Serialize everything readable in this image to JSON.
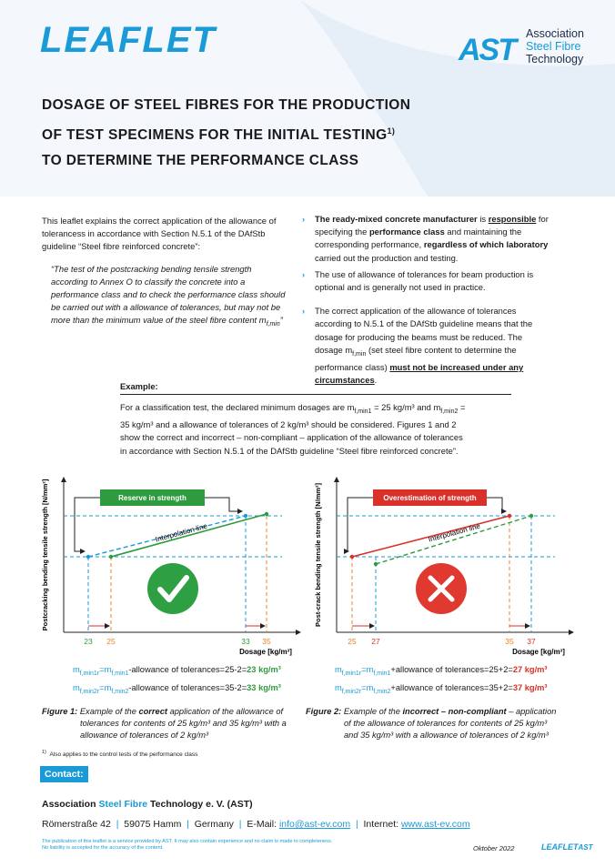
{
  "header": {
    "title": "LEAFLET",
    "logo": {
      "mark": "AST",
      "lines": [
        "Association",
        "Steel Fibre",
        "Technology"
      ]
    },
    "heading": {
      "lines": [
        "DOSAGE OF STEEL FIBRES FOR THE PRODUCTION",
        "OF TEST SPECIMENS FOR THE INITIAL TESTING",
        "TO DETERMINE THE PERFORMANCE CLASS"
      ],
      "footnote_mark": "1)"
    }
  },
  "left_column": {
    "intro": "This leaflet explains the correct application of the allowance of tolerancess in accordance with Section N.5.1 of the DAfStb guideline “Steel fibre reinforced concrete”:",
    "quote": [
      "“The test of the postcracking bending tensile strength according to Annex O to classify the concrete into a performance class and to check the performance class should be carried out with a allowance of tolerances, but may not be more than the minimum value of the steel fibre content m",
      "f,min",
      "”"
    ]
  },
  "right_column": {
    "bullets": [
      [
        "The ready-mixed concrete manufacturer",
        " is ",
        "responsible",
        " for specifying the ",
        "performance class",
        " and maintaining the corresponding performance, ",
        "regardless of which laboratory",
        " carried out the production and testing."
      ],
      [
        "The use of allowance of tolerances for beam production is optional and is generally not used in practice."
      ],
      [
        "The correct application of the allowance of tolerances according to N.5.1 of the DAfStb guideline means that the dosage for producing the beams must be reduced. The dosage m",
        "f,min",
        " (set steel fibre content to determine the performance class) ",
        "must not be increased under any circumstances",
        "."
      ]
    ]
  },
  "example": {
    "title": "Example:",
    "text": [
      "For a classification test, the declared minimum dosages are m",
      "f,min1",
      " = 25 kg/m³ and m",
      "f,min2",
      " = 35 kg/m³ and a allowance of tolerances of 2 kg/m³ should be considered. Figures 1 and 2 show the correct and incorrect – non-compliant – application of the allowance of tolerances in accordance with Section N.5.1 of the DAfStb guideline “Steel fibre reinforced concrete”."
    ]
  },
  "figures": [
    {
      "y_axis_label": "Postcracking bending tensile strength [N/mm²]",
      "x_axis_label": "Dosage [kg/m³]",
      "box_label": "Reserve in strength",
      "line_label": "Interpolation line",
      "x_ticks": [
        23,
        25,
        33,
        35
      ],
      "formulas": [
        [
          "m",
          "f,min1r",
          "=m",
          "f,min1",
          "-allowance of tolerances=",
          "25-2=",
          "23 kg/m³"
        ],
        [
          "m",
          "f,min2r",
          "=m",
          "f,min2",
          "-allowance of tolerances=",
          "35-2=",
          "33 kg/m³"
        ]
      ],
      "caption": [
        "Figure 1:",
        " Example of the ",
        "correct",
        " application of the allowance of tolerances for contents of 25 kg/m³ and 35 kg/m³ with a allowance of tolerances of 2 kg/m³"
      ]
    },
    {
      "y_axis_label": "Post-crack bending tensile strength [N/mm²]",
      "x_axis_label": "Dosage [kg/m³]",
      "box_label": "Overestimation of strength",
      "line_label": "Interpolation line",
      "x_ticks": [
        25,
        27,
        35,
        37
      ],
      "formulas": [
        [
          "m",
          "f,min1r",
          "=m",
          "f,min1",
          "+allowance of tolerances=",
          "25+2=",
          "27 kg/m³"
        ],
        [
          "m",
          "f,min2r",
          "=m",
          "f,min2",
          "+allowance of tolerances=",
          "35+2=",
          "37 kg/m³"
        ]
      ],
      "caption": [
        "Figure 2:",
        " Example of the ",
        "incorrect – non-compliant",
        " – application of the allowance of tolerances for contents of 25 kg/m³ and 35 kg/m³ with a allowance of tolerances of 2 kg/m³"
      ]
    }
  ],
  "footnote": {
    "mark": "1)",
    "text": "Also applies to the control tests of the performance class"
  },
  "contact": {
    "label": "Contact:",
    "organization": [
      "Association ",
      "Steel Fibre",
      " Technology  e. V. (AST)"
    ],
    "address": [
      "Römerstraße 42",
      "59075 Hamm",
      "Germany"
    ],
    "separator": "|",
    "email_label": "E-Mail: ",
    "email": "info@ast-ev.com",
    "internet_label": "Internet: ",
    "internet": "www.ast-ev.com"
  },
  "footer": {
    "disclaimer": [
      "The publication of this leaflet is a service provided by AST. It may also contain experience and no claim is made to completeness.",
      "No liability is accepted for the accuracy of the content."
    ],
    "date": "Oktober 2022",
    "mark": "LEAFLET",
    "logo": "AST"
  }
}
